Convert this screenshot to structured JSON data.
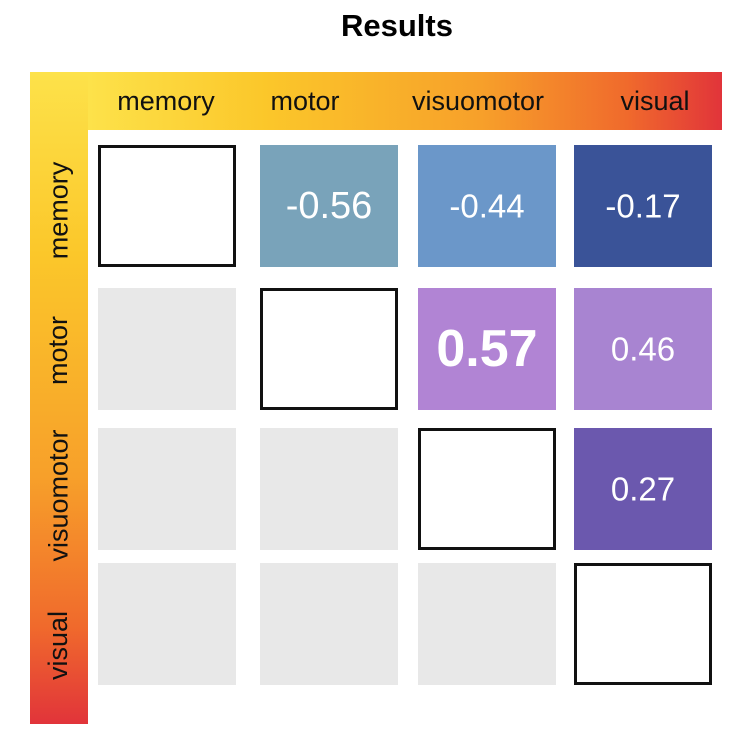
{
  "title": "Results",
  "labels": [
    "memory",
    "motor",
    "visuomotor",
    "visual"
  ],
  "chart_data": {
    "type": "heatmap",
    "title": "Results",
    "row_labels": [
      "memory",
      "motor",
      "visuomotor",
      "visual"
    ],
    "col_labels": [
      "memory",
      "motor",
      "visuomotor",
      "visual"
    ],
    "cells": [
      {
        "row": "memory",
        "col": "motor",
        "value": -0.56,
        "label": "-0.56",
        "color": "#79a3ba"
      },
      {
        "row": "memory",
        "col": "visuomotor",
        "value": -0.44,
        "label": "-0.44",
        "color": "#6b97c9"
      },
      {
        "row": "memory",
        "col": "visual",
        "value": -0.17,
        "label": "-0.17",
        "color": "#3a5398"
      },
      {
        "row": "motor",
        "col": "visuomotor",
        "value": 0.57,
        "label": "0.57",
        "color": "#b184d4",
        "emphasis": "bold"
      },
      {
        "row": "motor",
        "col": "visual",
        "value": 0.46,
        "label": "0.46",
        "color": "#a884d1"
      },
      {
        "row": "visuomotor",
        "col": "visual",
        "value": 0.27,
        "label": "0.27",
        "color": "#6b58ae"
      }
    ],
    "diagonal": "empty outlined squares",
    "lower_triangle": "empty gray squares",
    "lower_color": "#e8e8e8",
    "label_bar_gradient": [
      "#fde24a",
      "#f7a02a",
      "#e1343a"
    ]
  }
}
